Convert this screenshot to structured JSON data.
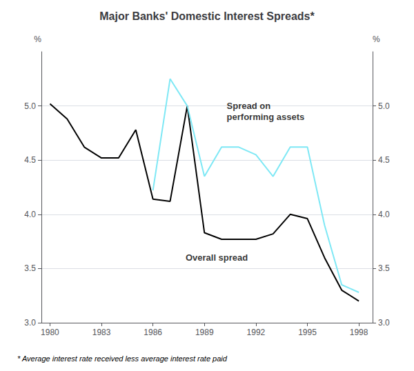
{
  "chart_data": {
    "type": "line",
    "title": "Major Banks' Domestic Interest Spreads*",
    "footnote": "* Average interest rate received less average interest rate paid",
    "x": [
      1980,
      1981,
      1982,
      1983,
      1984,
      1985,
      1986,
      1987,
      1988,
      1989,
      1990,
      1991,
      1992,
      1993,
      1994,
      1995,
      1996,
      1997,
      1998
    ],
    "series": [
      {
        "color": "#000000",
        "values": [
          5.02,
          4.88,
          4.62,
          4.52,
          4.52,
          4.78,
          4.14,
          4.12,
          5.0,
          3.83,
          3.77,
          3.77,
          3.77,
          3.82,
          4.0,
          3.96,
          3.6,
          3.3,
          3.2
        ]
      },
      {
        "color": "#7ee8f5",
        "values": [
          null,
          null,
          null,
          null,
          null,
          null,
          4.22,
          5.25,
          5.0,
          4.35,
          4.62,
          4.62,
          4.55,
          4.35,
          4.62,
          4.62,
          3.9,
          3.35,
          3.28
        ]
      }
    ],
    "xlim": [
      1979.5,
      1998.8
    ],
    "xticks": [
      1980,
      1983,
      1986,
      1989,
      1992,
      1995,
      1998
    ],
    "ylim": [
      3.0,
      5.5
    ],
    "yticks": [
      {
        "value": 3.0,
        "label": "3.0"
      },
      {
        "value": 3.5,
        "label": "3.5"
      },
      {
        "value": 4.0,
        "label": "4.0"
      },
      {
        "value": 4.5,
        "label": "4.5"
      },
      {
        "value": 5.0,
        "label": "5.0"
      }
    ],
    "y2lim": [
      3.0,
      5.5
    ],
    "y2ticks": [
      {
        "value": 3.0,
        "label": "3.0"
      },
      {
        "value": 3.5,
        "label": "3.5"
      },
      {
        "value": 4.0,
        "label": "4.0"
      },
      {
        "value": 4.5,
        "label": "4.5"
      },
      {
        "value": 5.0,
        "label": "5.0"
      }
    ],
    "ylabel": "%",
    "y2label": "%",
    "grid": true,
    "annotations": [
      {
        "text": "Overall spread",
        "x": 1987.9,
        "y": 3.6
      },
      {
        "text": "Spread on\nperforming assets",
        "x": 1990.3,
        "y": 4.95
      }
    ]
  }
}
